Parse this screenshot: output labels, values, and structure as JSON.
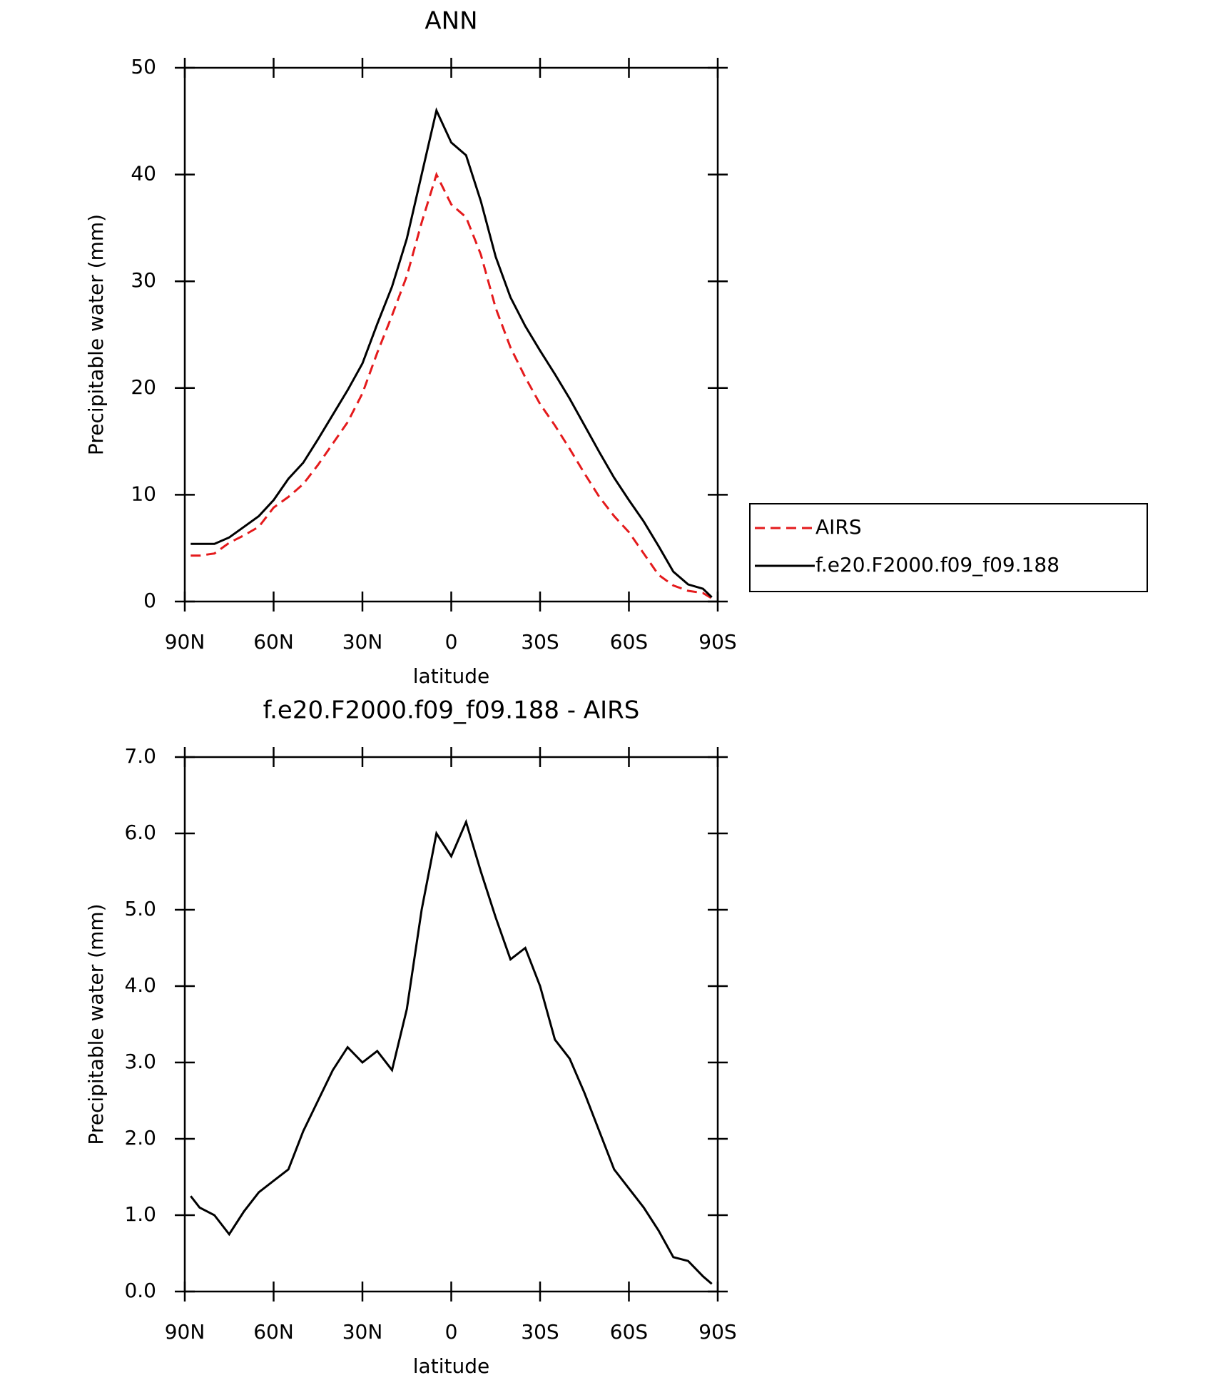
{
  "chart_data": [
    {
      "type": "line",
      "title": "ANN",
      "xlabel": "latitude",
      "ylabel": "Precipitable water (mm)",
      "xlim": [
        90,
        -90
      ],
      "ylim": [
        0,
        50
      ],
      "xticks": [
        {
          "value": 90,
          "label": "90N"
        },
        {
          "value": 60,
          "label": "60N"
        },
        {
          "value": 30,
          "label": "30N"
        },
        0,
        {
          "value": -30,
          "label": "30S"
        },
        {
          "value": -60,
          "label": "60S"
        },
        {
          "value": -90,
          "label": "90S"
        }
      ],
      "yticks": [
        0,
        10,
        20,
        30,
        40,
        50
      ],
      "legend": "right",
      "x": [
        88,
        85,
        80,
        75,
        70,
        65,
        60,
        55,
        50,
        45,
        40,
        35,
        30,
        25,
        20,
        15,
        10,
        5,
        0,
        -5,
        -10,
        -15,
        -20,
        -25,
        -30,
        -35,
        -40,
        -45,
        -50,
        -55,
        -60,
        -65,
        -70,
        -75,
        -80,
        -85,
        -88
      ],
      "series": [
        {
          "name": "AIRS",
          "color": "#e41a1c",
          "dash": "dashed",
          "values": [
            4.3,
            4.3,
            4.5,
            5.5,
            6.2,
            7.0,
            8.8,
            9.8,
            11.0,
            12.8,
            14.8,
            16.8,
            19.5,
            23.3,
            26.8,
            30.5,
            35.5,
            40.0,
            37.2,
            36.0,
            32.5,
            27.5,
            23.8,
            21.0,
            18.5,
            16.5,
            14.3,
            12.0,
            9.8,
            8.0,
            6.5,
            4.5,
            2.5,
            1.5,
            1.0,
            0.8,
            0.3
          ]
        },
        {
          "name": "f.e20.F2000.f09_f09.188",
          "color": "#000000",
          "dash": "solid",
          "values": [
            5.4,
            5.4,
            5.4,
            6.0,
            7.0,
            8.0,
            9.5,
            11.5,
            13.0,
            15.2,
            17.5,
            19.8,
            22.3,
            26.0,
            29.5,
            34.0,
            40.0,
            46.0,
            43.0,
            41.8,
            37.5,
            32.3,
            28.5,
            25.8,
            23.5,
            21.3,
            19.0,
            16.5,
            14.0,
            11.6,
            9.5,
            7.5,
            5.2,
            2.8,
            1.6,
            1.2,
            0.4
          ]
        }
      ]
    },
    {
      "type": "line",
      "title": "f.e20.F2000.f09_f09.188 - AIRS",
      "xlabel": "latitude",
      "ylabel": "Precipitable water (mm)",
      "xlim": [
        90,
        -90
      ],
      "ylim": [
        0,
        7
      ],
      "xticks": [
        {
          "value": 90,
          "label": "90N"
        },
        {
          "value": 60,
          "label": "60N"
        },
        {
          "value": 30,
          "label": "30N"
        },
        0,
        {
          "value": -30,
          "label": "30S"
        },
        {
          "value": -60,
          "label": "60S"
        },
        {
          "value": -90,
          "label": "90S"
        }
      ],
      "yticks": [
        {
          "value": 0,
          "label": "0.0"
        },
        {
          "value": 1,
          "label": "1.0"
        },
        {
          "value": 2,
          "label": "2.0"
        },
        {
          "value": 3,
          "label": "3.0"
        },
        {
          "value": 4,
          "label": "4.0"
        },
        {
          "value": 5,
          "label": "5.0"
        },
        {
          "value": 6,
          "label": "6.0"
        },
        {
          "value": 7,
          "label": "7.0"
        }
      ],
      "x": [
        88,
        85,
        80,
        75,
        70,
        65,
        60,
        55,
        50,
        45,
        40,
        35,
        30,
        25,
        20,
        15,
        10,
        5,
        0,
        -5,
        -10,
        -15,
        -20,
        -25,
        -30,
        -35,
        -40,
        -45,
        -50,
        -55,
        -60,
        -65,
        -70,
        -75,
        -80,
        -85,
        -88
      ],
      "series": [
        {
          "color": "#000000",
          "dash": "solid",
          "values": [
            1.25,
            1.1,
            1.0,
            0.75,
            1.05,
            1.3,
            1.45,
            1.6,
            2.1,
            2.5,
            2.9,
            3.2,
            3.0,
            3.15,
            2.9,
            3.7,
            5.0,
            6.0,
            5.7,
            6.15,
            5.5,
            4.9,
            4.35,
            4.5,
            4.0,
            3.3,
            3.05,
            2.6,
            2.1,
            1.6,
            1.35,
            1.1,
            0.8,
            0.45,
            0.4,
            0.2,
            0.1
          ]
        }
      ]
    }
  ]
}
